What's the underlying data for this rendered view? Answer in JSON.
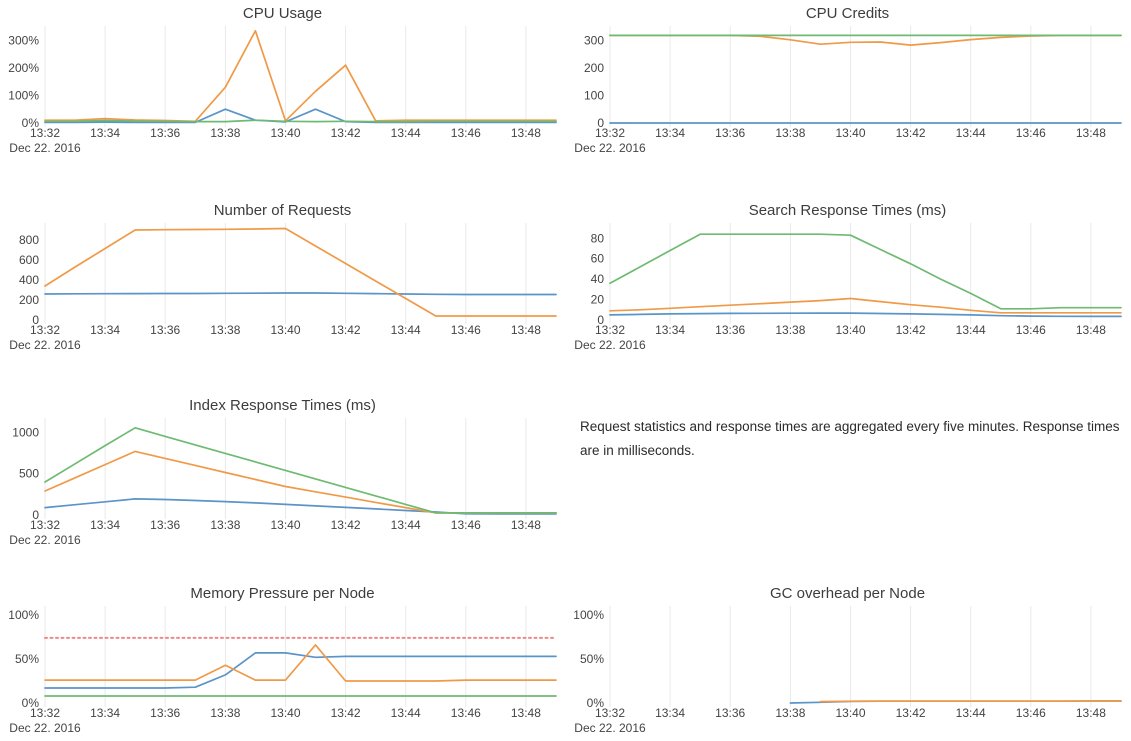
{
  "palette": {
    "blue": "#5b94c8",
    "orange": "#f09a48",
    "green": "#6fba72",
    "red": "#ee8888",
    "grid": "#e9e9e9",
    "tick_text": "#444444",
    "title_text": "#3d3d3d"
  },
  "note": {
    "text": "Request statistics and response times are aggregated every five minutes. Response times are in milliseconds."
  },
  "chart_data": [
    {
      "id": "cpu-usage",
      "type": "line",
      "title": "CPU Usage",
      "x_range": [
        0,
        17
      ],
      "ylim": [
        0,
        345
      ],
      "x_sub_label": "Dec 22. 2016",
      "x_ticks": [
        {
          "v": 0,
          "label": "13:32"
        },
        {
          "v": 2,
          "label": "13:34"
        },
        {
          "v": 4,
          "label": "13:36"
        },
        {
          "v": 6,
          "label": "13:38"
        },
        {
          "v": 8,
          "label": "13:40"
        },
        {
          "v": 10,
          "label": "13:42"
        },
        {
          "v": 12,
          "label": "13:44"
        },
        {
          "v": 14,
          "label": "13:46"
        },
        {
          "v": 16,
          "label": "13:48"
        }
      ],
      "y_ticks": [
        {
          "v": 0,
          "label": "0%"
        },
        {
          "v": 100,
          "label": "100%"
        },
        {
          "v": 200,
          "label": "200%"
        },
        {
          "v": 300,
          "label": "300%"
        }
      ],
      "series": [
        {
          "name": "node-blue",
          "color": "blue",
          "values": [
            2,
            2,
            3,
            2,
            2,
            2,
            50,
            10,
            4,
            50,
            5,
            2,
            2,
            2,
            2,
            2,
            2,
            2
          ]
        },
        {
          "name": "node-orange",
          "color": "orange",
          "values": [
            10,
            10,
            16,
            11,
            9,
            6,
            130,
            335,
            8,
            115,
            210,
            8,
            10,
            10,
            10,
            10,
            10,
            10
          ]
        },
        {
          "name": "node-green",
          "color": "green",
          "values": [
            6,
            6,
            9,
            7,
            6,
            5,
            5,
            10,
            6,
            5,
            6,
            5,
            5,
            6,
            6,
            6,
            6,
            6
          ]
        }
      ]
    },
    {
      "id": "cpu-credits",
      "type": "line",
      "title": "CPU Credits",
      "x_range": [
        0,
        17
      ],
      "ylim": [
        0,
        345
      ],
      "x_sub_label": "Dec 22. 2016",
      "x_ticks": [
        {
          "v": 0,
          "label": "13:32"
        },
        {
          "v": 2,
          "label": "13:34"
        },
        {
          "v": 4,
          "label": "13:36"
        },
        {
          "v": 6,
          "label": "13:38"
        },
        {
          "v": 8,
          "label": "13:40"
        },
        {
          "v": 10,
          "label": "13:42"
        },
        {
          "v": 12,
          "label": "13:44"
        },
        {
          "v": 14,
          "label": "13:46"
        },
        {
          "v": 16,
          "label": "13:48"
        }
      ],
      "y_ticks": [
        {
          "v": 0,
          "label": "0"
        },
        {
          "v": 100,
          "label": "100"
        },
        {
          "v": 200,
          "label": "200"
        },
        {
          "v": 300,
          "label": "300"
        }
      ],
      "series": [
        {
          "name": "node-blue",
          "color": "blue",
          "values": [
            0,
            0,
            0,
            0,
            0,
            0,
            0,
            0,
            0,
            0,
            0,
            0,
            0,
            0,
            0,
            0,
            0,
            0
          ]
        },
        {
          "name": "node-orange",
          "color": "orange",
          "values": [
            318,
            318,
            318,
            318,
            318,
            315,
            302,
            286,
            293,
            294,
            283,
            292,
            303,
            311,
            316,
            318,
            318,
            318
          ]
        },
        {
          "name": "node-green",
          "color": "green",
          "values": [
            318,
            318,
            318,
            318,
            318,
            318,
            318,
            318,
            318,
            318,
            318,
            318,
            318,
            318,
            318,
            318,
            318,
            318
          ]
        }
      ]
    },
    {
      "id": "number-of-requests",
      "type": "line",
      "title": "Number of Requests",
      "x_range": [
        0,
        17
      ],
      "ylim": [
        0,
        950
      ],
      "x_sub_label": "Dec 22. 2016",
      "x_ticks": [
        {
          "v": 0,
          "label": "13:32"
        },
        {
          "v": 2,
          "label": "13:34"
        },
        {
          "v": 4,
          "label": "13:36"
        },
        {
          "v": 6,
          "label": "13:38"
        },
        {
          "v": 8,
          "label": "13:40"
        },
        {
          "v": 10,
          "label": "13:42"
        },
        {
          "v": 12,
          "label": "13:44"
        },
        {
          "v": 14,
          "label": "13:46"
        },
        {
          "v": 16,
          "label": "13:48"
        }
      ],
      "y_ticks": [
        {
          "v": 0,
          "label": "0"
        },
        {
          "v": 200,
          "label": "200"
        },
        {
          "v": 400,
          "label": "400"
        },
        {
          "v": 600,
          "label": "600"
        },
        {
          "v": 800,
          "label": "800"
        }
      ],
      "series": [
        {
          "name": "requests-blue",
          "color": "blue",
          "values": [
            260,
            262,
            263,
            264,
            265,
            265,
            267,
            268,
            270,
            270,
            267,
            264,
            260,
            257,
            255,
            255,
            255,
            255
          ]
        },
        {
          "name": "requests-orange",
          "color": "orange",
          "values": [
            340,
            530,
            715,
            900,
            903,
            905,
            907,
            910,
            915,
            740,
            565,
            390,
            215,
            40,
            40,
            40,
            40,
            40
          ]
        }
      ]
    },
    {
      "id": "search-response-times",
      "type": "line",
      "title": "Search Response Times (ms)",
      "x_range": [
        0,
        17
      ],
      "ylim": [
        0,
        93
      ],
      "x_sub_label": "Dec 22. 2016",
      "x_ticks": [
        {
          "v": 0,
          "label": "13:32"
        },
        {
          "v": 2,
          "label": "13:34"
        },
        {
          "v": 4,
          "label": "13:36"
        },
        {
          "v": 6,
          "label": "13:38"
        },
        {
          "v": 8,
          "label": "13:40"
        },
        {
          "v": 10,
          "label": "13:42"
        },
        {
          "v": 12,
          "label": "13:44"
        },
        {
          "v": 14,
          "label": "13:46"
        },
        {
          "v": 16,
          "label": "13:48"
        }
      ],
      "y_ticks": [
        {
          "v": 0,
          "label": "0"
        },
        {
          "v": 20,
          "label": "20"
        },
        {
          "v": 40,
          "label": "40"
        },
        {
          "v": 60,
          "label": "60"
        },
        {
          "v": 80,
          "label": "80"
        }
      ],
      "series": [
        {
          "name": "search-blue",
          "color": "blue",
          "values": [
            5,
            5.5,
            6,
            6.3,
            6.5,
            6.6,
            6.7,
            6.8,
            6.8,
            6.4,
            6,
            5.5,
            5,
            4.2,
            3.8,
            3.6,
            3.5,
            3.5
          ]
        },
        {
          "name": "search-orange",
          "color": "orange",
          "values": [
            9,
            10,
            11.5,
            13,
            14.5,
            16,
            17.5,
            19,
            21,
            18,
            15,
            12.5,
            9.5,
            7,
            7,
            7,
            7,
            7
          ]
        },
        {
          "name": "search-green",
          "color": "green",
          "values": [
            36,
            52,
            68,
            84,
            84,
            84,
            84,
            84,
            83,
            69,
            55,
            40,
            26,
            11,
            11,
            12,
            12,
            12
          ]
        }
      ]
    },
    {
      "id": "index-response-times",
      "type": "line",
      "title": "Index Response Times (ms)",
      "x_range": [
        0,
        17
      ],
      "ylim": [
        0,
        1150
      ],
      "x_sub_label": "Dec 22. 2016",
      "x_ticks": [
        {
          "v": 0,
          "label": "13:32"
        },
        {
          "v": 2,
          "label": "13:34"
        },
        {
          "v": 4,
          "label": "13:36"
        },
        {
          "v": 6,
          "label": "13:38"
        },
        {
          "v": 8,
          "label": "13:40"
        },
        {
          "v": 10,
          "label": "13:42"
        },
        {
          "v": 12,
          "label": "13:44"
        },
        {
          "v": 14,
          "label": "13:46"
        },
        {
          "v": 16,
          "label": "13:48"
        }
      ],
      "y_ticks": [
        {
          "v": 0,
          "label": "0"
        },
        {
          "v": 500,
          "label": "500"
        },
        {
          "v": 1000,
          "label": "1000"
        }
      ],
      "series": [
        {
          "name": "index-blue",
          "color": "blue",
          "values": [
            90,
            125,
            160,
            195,
            188,
            176,
            162,
            146,
            128,
            110,
            92,
            74,
            55,
            36,
            15,
            13,
            13,
            13
          ]
        },
        {
          "name": "index-orange",
          "color": "orange",
          "values": [
            290,
            450,
            610,
            770,
            685,
            600,
            515,
            430,
            345,
            281,
            217,
            153,
            89,
            25,
            25,
            25,
            25,
            25
          ]
        },
        {
          "name": "index-green",
          "color": "green",
          "values": [
            400,
            620,
            840,
            1055,
            952,
            849,
            746,
            643,
            540,
            437,
            334,
            231,
            128,
            25,
            25,
            25,
            25,
            25
          ]
        }
      ]
    },
    {
      "id": "memory-pressure",
      "type": "line",
      "title": "Memory Pressure per Node",
      "x_range": [
        0,
        17
      ],
      "ylim": [
        0,
        108
      ],
      "x_sub_label": "Dec 22. 2016",
      "x_ticks": [
        {
          "v": 0,
          "label": "13:32"
        },
        {
          "v": 2,
          "label": "13:34"
        },
        {
          "v": 4,
          "label": "13:36"
        },
        {
          "v": 6,
          "label": "13:38"
        },
        {
          "v": 8,
          "label": "13:40"
        },
        {
          "v": 10,
          "label": "13:42"
        },
        {
          "v": 12,
          "label": "13:44"
        },
        {
          "v": 14,
          "label": "13:46"
        },
        {
          "v": 16,
          "label": "13:48"
        }
      ],
      "y_ticks": [
        {
          "v": 0,
          "label": "0%"
        },
        {
          "v": 50,
          "label": "50%"
        },
        {
          "v": 100,
          "label": "100%"
        }
      ],
      "series": [
        {
          "name": "memory-blue",
          "color": "blue",
          "values": [
            17,
            17,
            17,
            17,
            17,
            18,
            32,
            57,
            57,
            52,
            53,
            53,
            53,
            53,
            53,
            53,
            53,
            53
          ]
        },
        {
          "name": "memory-orange",
          "color": "orange",
          "values": [
            26,
            26,
            26,
            26,
            26,
            26,
            43,
            26,
            26,
            66,
            25,
            25,
            25,
            25,
            26,
            26,
            26,
            26
          ]
        },
        {
          "name": "memory-green",
          "color": "green",
          "values": [
            8,
            8,
            8,
            8,
            8,
            8,
            8,
            8,
            8,
            8,
            8,
            8,
            8,
            8,
            8,
            8,
            8,
            8
          ]
        },
        {
          "name": "memory-threshold",
          "color": "red",
          "dash": "2 3.5",
          "width": 2,
          "values": [
            74,
            74,
            74,
            74,
            74,
            74,
            74,
            74,
            74,
            74,
            74,
            74,
            74,
            74,
            74,
            74,
            74,
            74
          ]
        }
      ]
    },
    {
      "id": "gc-overhead",
      "type": "line",
      "title": "GC overhead per Node",
      "x_range": [
        0,
        17
      ],
      "ylim": [
        0,
        108
      ],
      "x_sub_label": "Dec 22. 2016",
      "x_ticks": [
        {
          "v": 0,
          "label": "13:32"
        },
        {
          "v": 2,
          "label": "13:34"
        },
        {
          "v": 4,
          "label": "13:36"
        },
        {
          "v": 6,
          "label": "13:38"
        },
        {
          "v": 8,
          "label": "13:40"
        },
        {
          "v": 10,
          "label": "13:42"
        },
        {
          "v": 12,
          "label": "13:44"
        },
        {
          "v": 14,
          "label": "13:46"
        },
        {
          "v": 16,
          "label": "13:48"
        }
      ],
      "y_ticks": [
        {
          "v": 0,
          "label": "0%"
        },
        {
          "v": 50,
          "label": "50%"
        },
        {
          "v": 100,
          "label": "100%"
        }
      ],
      "series": [
        {
          "name": "gc-blue",
          "color": "blue",
          "x": [
            6,
            7,
            8,
            9,
            10,
            11,
            12,
            13,
            14,
            15,
            16,
            17
          ],
          "values": [
            0,
            0.8,
            1.8,
            2,
            2,
            2,
            2,
            2,
            2,
            2,
            2.3,
            2.3
          ]
        },
        {
          "name": "gc-orange",
          "color": "orange",
          "x": [
            7,
            8,
            9,
            10,
            11,
            12,
            13,
            14,
            15,
            16,
            17
          ],
          "values": [
            1.6,
            2,
            2.2,
            2.2,
            2.2,
            2.2,
            2.2,
            2.2,
            2.2,
            2.2,
            2.2
          ]
        }
      ]
    }
  ]
}
